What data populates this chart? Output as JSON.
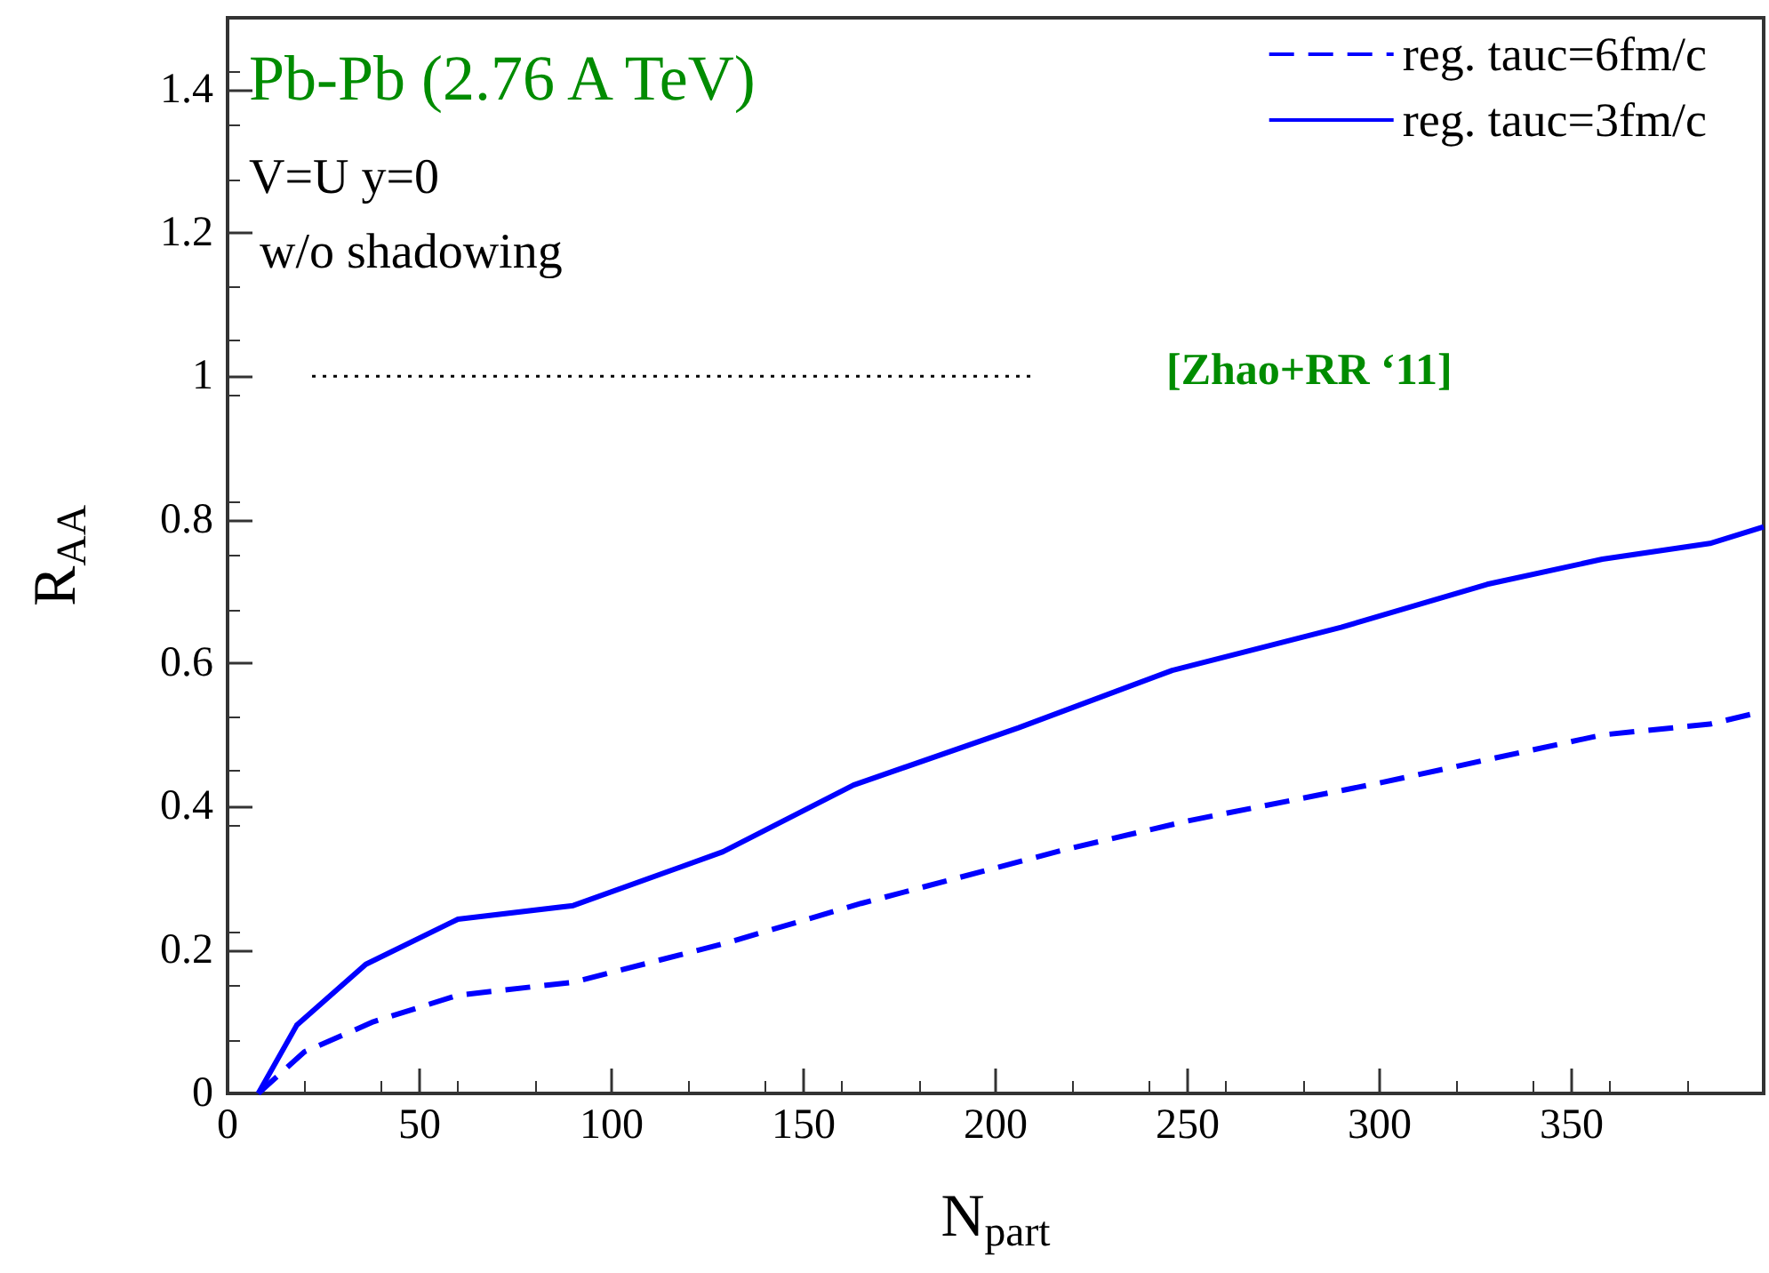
{
  "chart_data": {
    "type": "line",
    "xlabel": "N$_{part}$",
    "ylabel": "R$_{AA}$",
    "xlim": [
      0,
      400
    ],
    "xticks": [
      0,
      50,
      100,
      150,
      200,
      250,
      300,
      350,
      {
        "value": 400,
        "label": null
      }
    ],
    "ylim": [
      0,
      1.5
    ],
    "yticks": [
      0,
      0.2,
      0.4,
      0.6,
      0.8,
      1,
      1.2,
      1.4
    ],
    "grid": false,
    "legend": "top right",
    "marker": "none",
    "annotations": [
      "Pb-Pb (2.76 A TeV)",
      "V=U y=0",
      "w/o shadowing",
      "[Zhao+RR ‘11]"
    ],
    "series": [
      {
        "name": "reg. tauc=6fm/c",
        "color": "#0000ff",
        "line_style": "dashed",
        "x": [
          8,
          20,
          38,
          60,
          90,
          130,
          165,
          218,
          250,
          300,
          358,
          386,
          400
        ],
        "values": [
          0,
          0.058,
          0.1,
          0.137,
          0.155,
          0.21,
          0.265,
          0.34,
          0.38,
          0.433,
          0.5,
          0.515,
          0.533
        ]
      },
      {
        "name": "reg. tauc=3fm/c",
        "color": "#0000ff",
        "line_style": "solid",
        "x": [
          8,
          18,
          36,
          60,
          90,
          129,
          163,
          206,
          246,
          290,
          328,
          358,
          386,
          400
        ],
        "values": [
          0,
          0.095,
          0.18,
          0.243,
          0.262,
          0.337,
          0.43,
          0.51,
          0.59,
          0.65,
          0.71,
          0.745,
          0.767,
          0.79
        ]
      },
      {
        "type": "line",
        "color": "#000000",
        "line_style": "dotted",
        "x": [
          22,
          210
        ],
        "values": [
          1,
          1
        ]
      }
    ]
  }
}
